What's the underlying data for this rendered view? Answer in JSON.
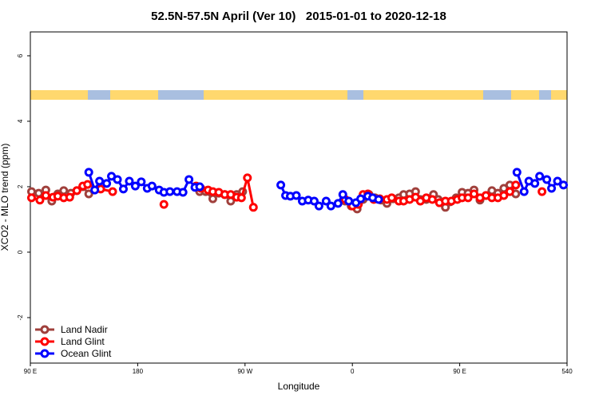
{
  "chart_data": {
    "type": "line",
    "title": "52.5N-57.5N April (Ver 10)   2015-01-01 to 2020-12-18",
    "x_label": "Longitude",
    "y_label": "XCO2 - MLO trend (ppm)",
    "xlim": [
      90,
      540
    ],
    "ylim": [
      -3.39,
      6.73
    ],
    "xticks": [
      {
        "value": 90,
        "label": "90 E"
      },
      180,
      {
        "value": 270,
        "label": "90 W"
      },
      {
        "value": 360,
        "label": "0"
      },
      {
        "value": 450,
        "label": "90 E"
      },
      540
    ],
    "yticks": [
      -2,
      0,
      2,
      4,
      6
    ],
    "legend": "bottom-left",
    "series": [
      {
        "name": "Land Nadir",
        "color": "#a0403c",
        "x": [
          91,
          97,
          103,
          108,
          113,
          118,
          124,
          129,
          134,
          139,
          null,
          232,
          237,
          243,
          248,
          253,
          258,
          263,
          268,
          null,
          354,
          359,
          364,
          369,
          374,
          379,
          384,
          389,
          394,
          399,
          403,
          408,
          413,
          417,
          422,
          428,
          432,
          438,
          442,
          447,
          452,
          457,
          462,
          467,
          472,
          477,
          482,
          487,
          492,
          497
        ],
        "values": [
          1.85,
          1.8,
          1.9,
          1.56,
          1.78,
          1.88,
          1.8,
          1.88,
          2.0,
          1.78,
          null,
          1.85,
          1.85,
          1.63,
          1.8,
          1.76,
          1.56,
          1.76,
          1.85,
          null,
          1.56,
          1.41,
          1.32,
          1.61,
          1.76,
          1.66,
          1.59,
          1.49,
          1.63,
          1.66,
          1.76,
          1.78,
          1.85,
          1.61,
          1.61,
          1.76,
          1.61,
          1.37,
          1.54,
          1.66,
          1.83,
          1.8,
          1.9,
          1.59,
          1.73,
          1.88,
          1.8,
          1.95,
          2.05,
          1.78
        ]
      },
      {
        "name": "Land Glint",
        "color": "#ff0000",
        "x": [
          91,
          98,
          103,
          109,
          113,
          118,
          123,
          129,
          134,
          138,
          149,
          159,
          null,
          202,
          null,
          229,
          233,
          239,
          243,
          248,
          253,
          258,
          263,
          267,
          272,
          277,
          null,
          354,
          360,
          365,
          369,
          373,
          378,
          383,
          389,
          393,
          399,
          403,
          408,
          413,
          417,
          422,
          427,
          433,
          438,
          443,
          448,
          452,
          457,
          462,
          467,
          472,
          477,
          482,
          487,
          492,
          497,
          null,
          519
        ],
        "values": [
          1.66,
          1.59,
          1.73,
          1.68,
          1.71,
          1.66,
          1.68,
          1.88,
          2.02,
          2.07,
          1.93,
          1.85,
          null,
          1.46,
          null,
          2.02,
          1.95,
          1.9,
          1.85,
          1.83,
          1.76,
          1.76,
          1.68,
          1.66,
          2.27,
          1.37,
          null,
          1.61,
          1.41,
          1.46,
          1.76,
          1.78,
          1.61,
          1.63,
          1.61,
          1.66,
          1.56,
          1.56,
          1.61,
          1.68,
          1.56,
          1.66,
          1.61,
          1.51,
          1.56,
          1.56,
          1.61,
          1.66,
          1.66,
          1.78,
          1.66,
          1.73,
          1.66,
          1.66,
          1.73,
          1.85,
          2.05,
          null,
          1.85
        ]
      },
      {
        "name": "Ocean Glint",
        "color": "#0000ff",
        "x": [
          139,
          144,
          148,
          154,
          158,
          163,
          168,
          173,
          178,
          183,
          188,
          192,
          198,
          202,
          207,
          213,
          218,
          223,
          228,
          232,
          null,
          300,
          304,
          308,
          313,
          318,
          323,
          328,
          332,
          338,
          342,
          348,
          352,
          357,
          363,
          367,
          373,
          377,
          382,
          null,
          498,
          504,
          508,
          513,
          517,
          523,
          527,
          532,
          537
        ],
        "values": [
          2.44,
          1.9,
          2.17,
          2.1,
          2.32,
          2.22,
          1.93,
          2.17,
          2.02,
          2.15,
          1.95,
          2.02,
          1.9,
          1.83,
          1.85,
          1.85,
          1.83,
          2.22,
          1.98,
          2.0,
          null,
          2.05,
          1.73,
          1.71,
          1.73,
          1.56,
          1.59,
          1.56,
          1.41,
          1.56,
          1.41,
          1.49,
          1.76,
          1.56,
          1.51,
          1.63,
          1.71,
          1.66,
          1.61,
          null,
          2.44,
          1.85,
          2.17,
          2.1,
          2.32,
          2.22,
          1.95,
          2.17,
          2.05
        ]
      }
    ]
  }
}
